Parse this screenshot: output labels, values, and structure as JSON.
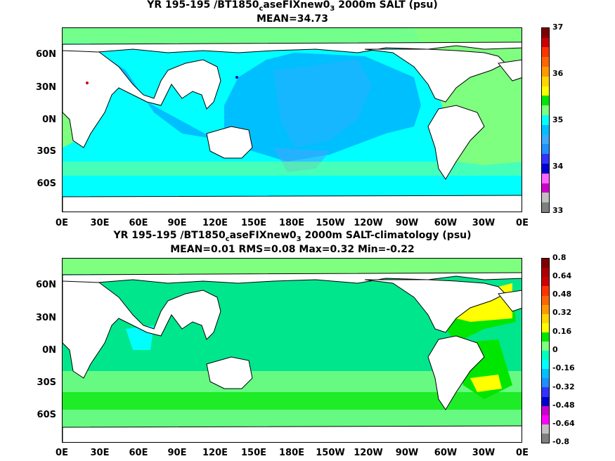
{
  "panel1": {
    "title_a": "YR 195-195 /BT1850",
    "title_sub1": "c",
    "title_b": "aseFIXnew0",
    "title_sub2": "3",
    "title_c": " 2000m SALT (psu)",
    "stats": "MEAN=34.73",
    "lat_labels": [
      "60N",
      "30N",
      "0N",
      "30S",
      "60S"
    ],
    "lon_labels": [
      "0E",
      "30E",
      "60E",
      "90E",
      "120E",
      "150E",
      "180E",
      "150W",
      "120W",
      "90W",
      "60W",
      "30W",
      "0E"
    ],
    "colorbar_ticks": [
      "37",
      "36",
      "35",
      "34",
      "33"
    ],
    "colorbar_colors": [
      "#7f7f7f",
      "#c0c0c0",
      "#cc00cc",
      "#ff66ff",
      "#0000cc",
      "#3333ff",
      "#1e90ff",
      "#3fa8ff",
      "#00bfff",
      "#00ffff",
      "#7fff7f",
      "#00e600",
      "#ffff00",
      "#ffd700",
      "#ff9900",
      "#ff6600",
      "#ff3300",
      "#cc0000",
      "#7f0000"
    ]
  },
  "panel2": {
    "title_a": "YR 195-195 /BT1850",
    "title_sub1": "c",
    "title_b": "aseFIXnew0",
    "title_sub2": "3",
    "title_c": " 2000m SALT-climatology (psu)",
    "stats": "MEAN=0.01   RMS=0.08   Max=0.32   Min=-0.22",
    "lat_labels": [
      "60N",
      "30N",
      "0N",
      "30S",
      "60S"
    ],
    "lon_labels": [
      "0E",
      "30E",
      "60E",
      "90E",
      "120E",
      "150E",
      "180E",
      "150W",
      "120W",
      "90W",
      "60W",
      "30W",
      "0E"
    ],
    "colorbar_ticks": [
      "0.8",
      "0.64",
      "0.48",
      "0.32",
      "0.16",
      "0",
      "-0.16",
      "-0.32",
      "-0.48",
      "-0.64",
      "-0.8"
    ],
    "colorbar_colors": [
      "#7f7f7f",
      "#c0c0c0",
      "#ff00ff",
      "#cc00cc",
      "#0000cc",
      "#3333ff",
      "#1e90ff",
      "#00bfff",
      "#00ffff",
      "#00ffbf",
      "#7fff7f",
      "#00e600",
      "#ffff00",
      "#ffd700",
      "#ff9900",
      "#ff6600",
      "#ff3300",
      "#cc0000",
      "#aa0000",
      "#7f0000"
    ]
  },
  "colors": {
    "land": "#ffffff",
    "coast": "#000000",
    "p1_pacific": "#00bfff",
    "p1_deep": "#3fa8ff",
    "p1_indian": "#00ffff",
    "p1_atlantic": "#7fff7f",
    "p1_southern": "#00ffff",
    "p2_base": "#00e68c",
    "p2_green": "#7fff7f",
    "p2_bright": "#00e600",
    "p2_yellow": "#ffff00",
    "p2_cyan": "#00ffff"
  }
}
